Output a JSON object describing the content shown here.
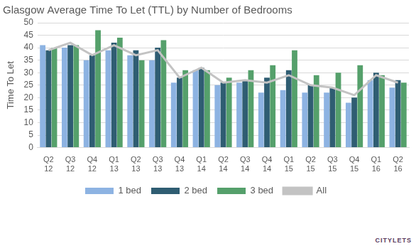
{
  "chart_data": {
    "type": "bar",
    "title": "Glasgow Average Time To Let (TTL) by Number of Bedrooms",
    "y_label": "Time To Let",
    "annotation": "CITYLETS",
    "categories": [
      "Q2 12",
      "Q3 12",
      "Q4 12",
      "Q1 13",
      "Q2 13",
      "Q3 13",
      "Q4 13",
      "Q1 14",
      "Q2 14",
      "Q3 14",
      "Q4 14",
      "Q1 15",
      "Q2 15",
      "Q3 15",
      "Q4 15",
      "Q1 16",
      "Q2 16"
    ],
    "series": [
      {
        "name": "1 bed",
        "color": "#8db3e2",
        "values": [
          41,
          40,
          35,
          39,
          37,
          35,
          26,
          31,
          25,
          26,
          22,
          23,
          22,
          22,
          18,
          27,
          24
        ]
      },
      {
        "name": "2 bed",
        "color": "#2f5d72",
        "values": [
          39,
          41,
          37,
          42,
          39,
          40,
          28,
          32,
          26,
          27,
          28,
          31,
          25,
          24,
          20,
          30,
          27
        ]
      },
      {
        "name": "3 bed",
        "color": "#55a06b",
        "values": [
          40,
          41,
          47,
          44,
          35,
          43,
          31,
          31,
          28,
          31,
          33,
          39,
          29,
          30,
          33,
          29,
          26
        ]
      },
      {
        "name": "All",
        "color": "#c3c3c3",
        "type": "line",
        "values": [
          39,
          42,
          37,
          41,
          37,
          39,
          28,
          32,
          26,
          27,
          26,
          29,
          25,
          24,
          21,
          29,
          26
        ]
      }
    ],
    "ylim": [
      0,
      50
    ],
    "yticks": [
      0,
      5,
      10,
      15,
      20,
      25,
      30,
      35,
      40,
      45,
      50
    ],
    "grid": true,
    "legend": "bottom"
  }
}
